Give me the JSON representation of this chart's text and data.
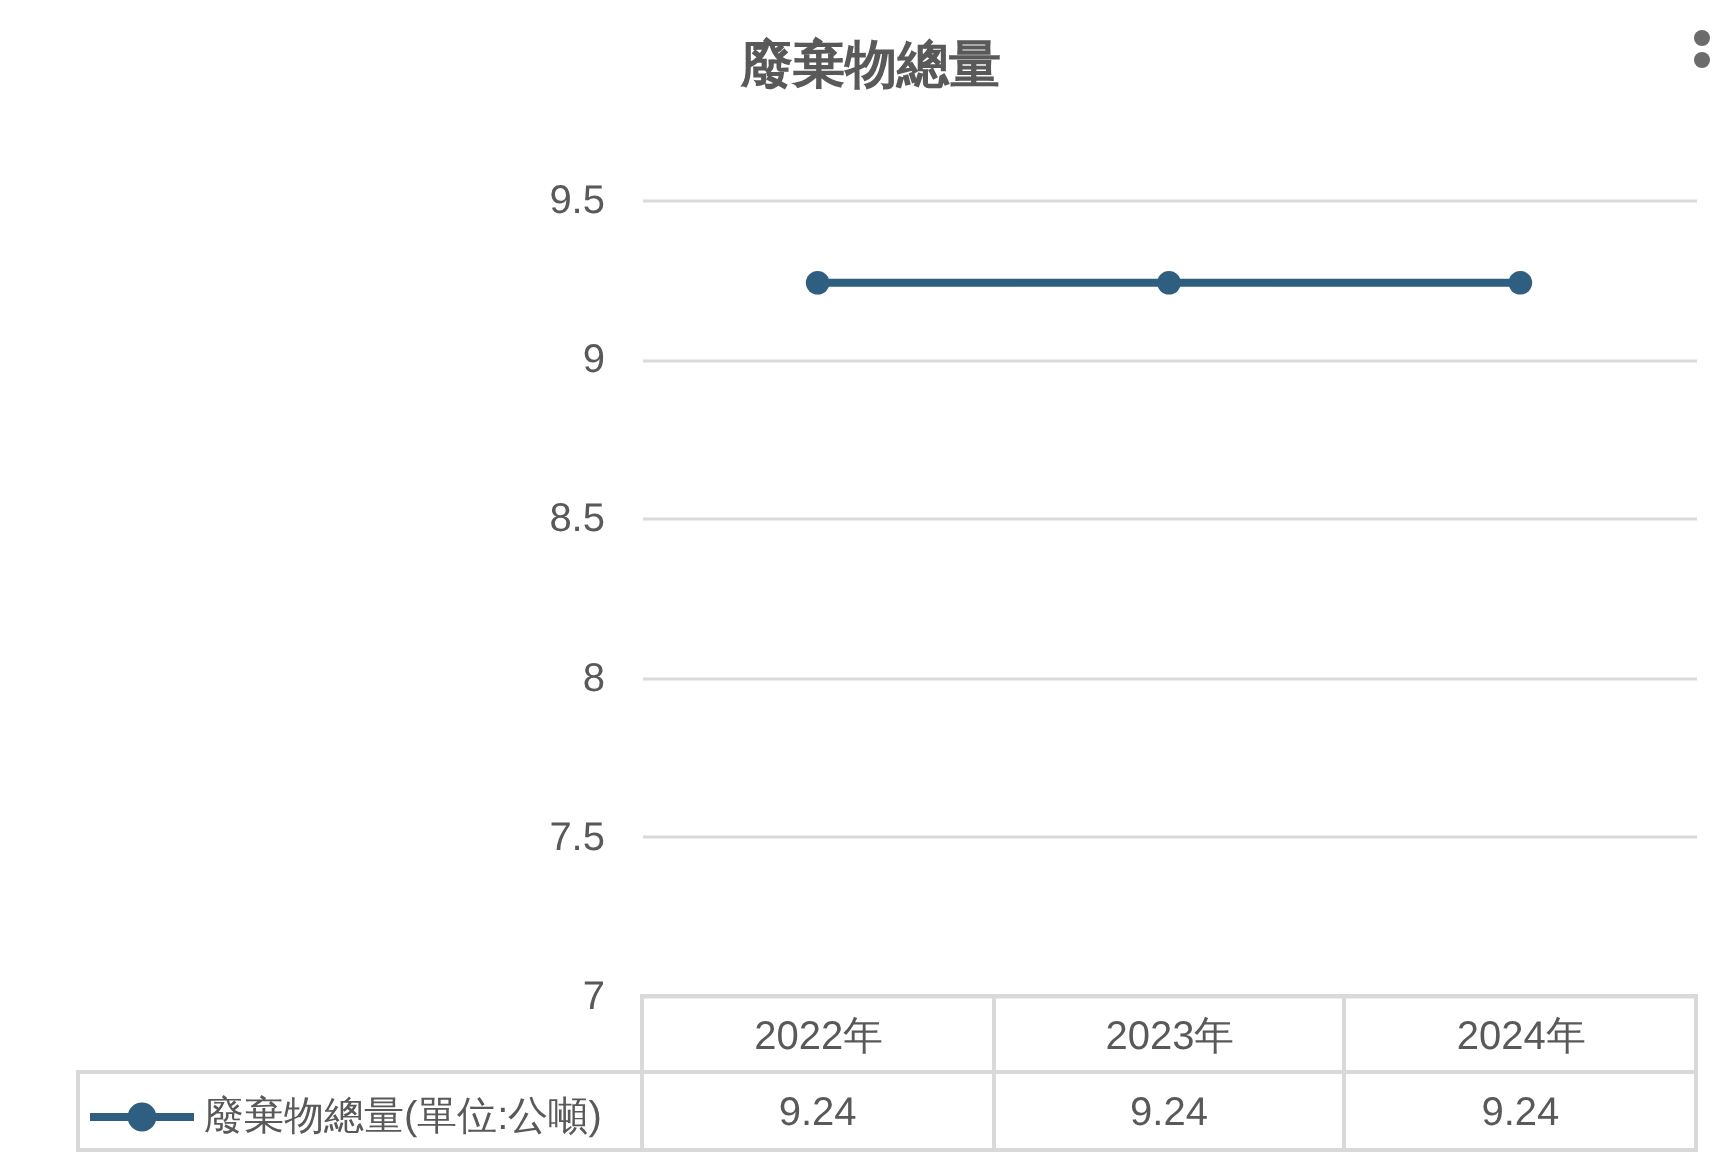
{
  "chart_data": {
    "type": "line",
    "title": "廢棄物總量",
    "categories": [
      "2022年",
      "2023年",
      "2024年"
    ],
    "series": [
      {
        "name": "廢棄物總量(單位:公噸)",
        "color": "#2e5f80",
        "values": [
          9.24,
          9.24,
          9.24
        ]
      }
    ],
    "ylim": [
      7,
      9.5
    ],
    "yticks": [
      7,
      7.5,
      8,
      8.5,
      9,
      9.5
    ],
    "grid": "y",
    "legend": "bottom left",
    "marker": "circle",
    "line_style": "solid",
    "data_labels": true
  }
}
